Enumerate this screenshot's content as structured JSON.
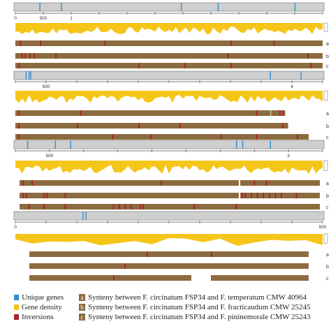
{
  "colors": {
    "ruler_fill": "#cfcfcf",
    "ruler_stroke": "#8a8a8a",
    "unique": "#2d8fd0",
    "density": "#f5c518",
    "synteny": "#8c6b3e",
    "inversion": "#a9212a"
  },
  "panels": [
    {
      "ticks": [
        "0",
        "500",
        "1",
        "",
        "",
        "",
        "",
        "",
        "",
        "",
        "",
        ""
      ],
      "unique_positions": [
        0.08,
        0.15,
        0.54,
        0.66,
        0.91
      ],
      "track_labels": [
        "a",
        "b",
        "c"
      ],
      "tracks": [
        {
          "segments": [
            [
              0.0,
              1.0
            ]
          ],
          "inversions": [
            0.015,
            0.08,
            0.29,
            0.7,
            0.84
          ]
        },
        {
          "segments": [
            [
              0.0,
              1.0
            ]
          ],
          "inversions": [
            0.02,
            0.03,
            0.045,
            0.06,
            0.13,
            0.69,
            0.95
          ]
        },
        {
          "segments": [
            [
              0.0,
              1.0
            ]
          ],
          "inversions": [
            0.01,
            0.4,
            0.55,
            0.7,
            0.96
          ]
        }
      ]
    },
    {
      "ticks": [
        "",
        "500",
        "",
        "",
        "",
        "",
        "",
        "",
        "",
        "4",
        ""
      ],
      "unique_positions": [
        0.035,
        0.045,
        0.05,
        0.83,
        0.93
      ],
      "track_labels": [
        "a",
        "b",
        "c"
      ],
      "tracks": [
        {
          "segments": [
            [
              0.0,
              0.87
            ],
            [
              0.872,
              0.92
            ]
          ],
          "inversions": [
            0.01,
            0.22,
            0.82,
            0.9,
            0.91
          ]
        },
        {
          "segments": [
            [
              0.0,
              0.87
            ],
            [
              0.87,
              0.93
            ]
          ],
          "inversions": [
            0.01,
            0.21,
            0.42,
            0.56,
            0.91
          ]
        },
        {
          "segments": [
            [
              0.0,
              1.0
            ]
          ],
          "inversions": [
            0.01,
            0.33,
            0.46,
            0.7,
            0.82,
            0.96
          ]
        }
      ]
    },
    {
      "ticks": [
        "",
        "500",
        "",
        "",
        "",
        "",
        "",
        "",
        "3",
        ""
      ],
      "unique_positions": [
        0.04,
        0.13,
        0.18,
        0.72,
        0.74,
        0.83
      ],
      "track_labels": [
        "a",
        "b",
        "c"
      ],
      "tracks": [
        {
          "segments": [
            [
              0.0,
              0.73
            ],
            [
              0.735,
              1.0
            ]
          ],
          "inversions": [
            0.01,
            0.04,
            0.47,
            0.78,
            0.82
          ]
        },
        {
          "segments": [
            [
              0.0,
              0.73
            ],
            [
              0.735,
              1.0
            ]
          ],
          "inversions": [
            0.01,
            0.02,
            0.08,
            0.09,
            0.15,
            0.74,
            0.75,
            0.77,
            0.79,
            0.81,
            0.83,
            0.85,
            0.87,
            0.92
          ]
        },
        {
          "segments": [
            [
              0.0,
              0.31
            ],
            [
              0.312,
              1.0
            ]
          ],
          "inversions": [
            0.03,
            0.08,
            0.15,
            0.31,
            0.33,
            0.35,
            0.37,
            0.4,
            0.41,
            0.58,
            0.72
          ]
        }
      ]
    },
    {
      "ticks": [
        "0",
        "",
        "",
        "",
        "",
        "",
        "",
        "",
        "",
        "",
        "500"
      ],
      "unique_positions": [
        0.22,
        0.23
      ],
      "track_labels": [
        "a",
        "b",
        "c"
      ],
      "tracks": [
        {
          "segments": [
            [
              0.0,
              1.0
            ]
          ],
          "inversions": [
            0.42,
            0.65
          ]
        },
        {
          "segments": [
            [
              0.0,
              1.0
            ]
          ],
          "inversions": [
            0.34
          ]
        },
        {
          "segments": [
            [
              0.0,
              0.58
            ],
            [
              0.65,
              1.0
            ]
          ],
          "inversions": [
            0.3
          ]
        }
      ]
    }
  ],
  "legend": {
    "unique_label": "Unique genes",
    "density_label": "Gene density",
    "inversion_label": "Inversions",
    "synteny": [
      {
        "letter": "a",
        "text": "Synteny between F. circinatum FSP34 and F. temperatum CMW 40964"
      },
      {
        "letter": "b",
        "text": "Synteny between F. circinatum FSP34 and F. fracticaudum CMW 25245"
      },
      {
        "letter": "c",
        "text": "Synteny between F. circinatum FSP34 and F. pininemorale CMW 25243"
      }
    ]
  }
}
